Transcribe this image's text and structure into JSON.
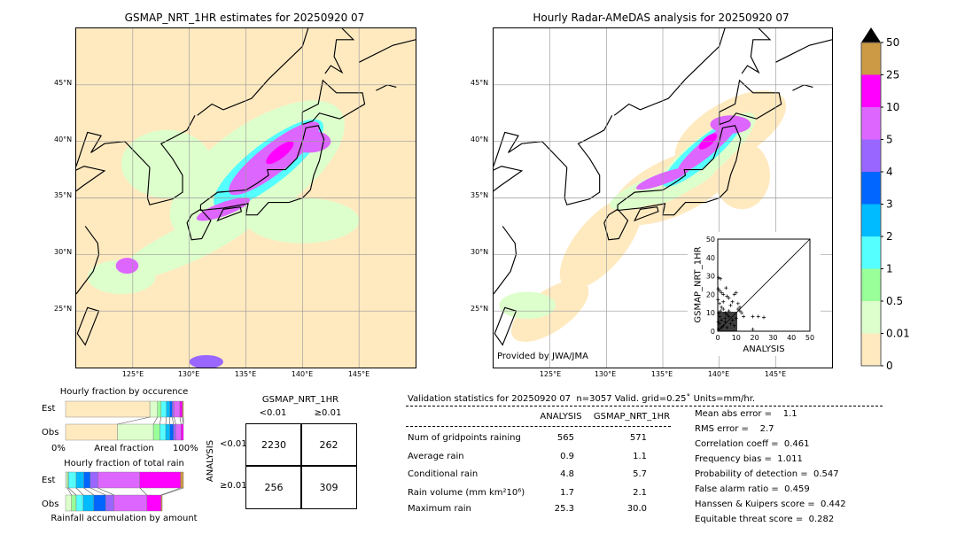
{
  "left_map": {
    "title": "GSMAP_NRT_1HR estimates for 20250920 07"
  },
  "right_map": {
    "title": "Hourly Radar-AMeDAS analysis for 20250920 07",
    "credit": "Provided by JWA/JMA"
  },
  "lon_ticks": [
    "125°E",
    "130°E",
    "135°E",
    "140°E",
    "145°E"
  ],
  "lat_ticks": [
    "45°N",
    "40°N",
    "35°N",
    "30°N",
    "25°N"
  ],
  "colorbar": {
    "labels": [
      "50",
      "25",
      "10",
      "5",
      "4",
      "3",
      "2",
      "1",
      "0.5",
      "0.01",
      "0"
    ],
    "colors": [
      "#cc9944",
      "#ff00ff",
      "#dd66ff",
      "#9966ff",
      "#0066ff",
      "#00bbff",
      "#55ffff",
      "#99ff99",
      "#ddffcc",
      "#ffeac0"
    ],
    "extend_color": "#000000"
  },
  "chart_data": [
    {
      "type": "bar",
      "title": "Hourly fraction by occurence",
      "xlabel": "Areal fraction",
      "x_tick_labels": [
        "0%",
        "100%"
      ],
      "categories": [
        "Est",
        "Obs"
      ],
      "series": [
        {
          "name": "Est",
          "cumulative": [
            0.715,
            0.78,
            0.81,
            0.855,
            0.885,
            0.905,
            0.92,
            0.97,
            0.99,
            1.0
          ]
        },
        {
          "name": "Obs",
          "cumulative": [
            0.44,
            0.745,
            0.8,
            0.85,
            0.885,
            0.915,
            0.935,
            0.98,
            1.0,
            1.0
          ]
        }
      ]
    },
    {
      "type": "bar",
      "title": "Hourly fraction of total rain",
      "xlabel": "Rainfall accumulation by amount",
      "categories": [
        "Est",
        "Obs"
      ],
      "series": [
        {
          "name": "Est",
          "cumulative": [
            0,
            0.015,
            0.025,
            0.09,
            0.155,
            0.21,
            0.275,
            0.63,
            0.975,
            1.0
          ]
        },
        {
          "name": "Obs",
          "cumulative": [
            0,
            0.05,
            0.09,
            0.15,
            0.24,
            0.34,
            0.41,
            0.69,
            0.81,
            0.82
          ]
        }
      ]
    },
    {
      "type": "table",
      "title": "GSMAP_NRT_1HR",
      "col_labels": [
        "<0.01",
        "≥0.01"
      ],
      "row_title": "ANALYSIS",
      "row_labels": [
        "<0.01",
        "≥0.01"
      ],
      "cells": [
        [
          "2230",
          "262"
        ],
        [
          "256",
          "309"
        ]
      ]
    },
    {
      "type": "scatter",
      "xlabel": "ANALYSIS",
      "ylabel": "GSMAP_NRT_1HR",
      "xlim": [
        0,
        50
      ],
      "ylim": [
        0,
        50
      ],
      "ticks": [
        "0",
        "10",
        "20",
        "30",
        "40",
        "50"
      ],
      "points": [
        [
          0.5,
          29
        ],
        [
          1.5,
          28.5
        ],
        [
          0.3,
          23
        ],
        [
          1,
          22
        ],
        [
          2,
          21
        ],
        [
          4.5,
          23.5
        ],
        [
          3,
          20
        ],
        [
          5,
          19
        ],
        [
          6,
          18
        ],
        [
          9,
          20
        ],
        [
          10,
          21
        ],
        [
          8,
          16
        ],
        [
          7,
          14
        ],
        [
          11,
          12
        ],
        [
          12,
          11
        ],
        [
          13,
          10
        ],
        [
          14,
          8
        ],
        [
          10,
          7
        ],
        [
          19,
          8
        ],
        [
          22,
          8
        ],
        [
          25,
          7.5
        ],
        [
          19,
          1
        ],
        [
          1,
          15
        ],
        [
          2,
          13
        ],
        [
          3,
          12
        ],
        [
          4,
          10
        ],
        [
          5,
          9
        ],
        [
          6,
          8
        ],
        [
          2,
          6
        ],
        [
          1,
          4
        ],
        [
          3,
          3
        ],
        [
          4,
          5
        ],
        [
          5,
          2
        ],
        [
          7,
          4
        ],
        [
          8,
          6
        ],
        [
          9,
          3
        ],
        [
          0.5,
          10
        ],
        [
          0.2,
          17
        ],
        [
          1,
          8
        ],
        [
          2,
          2
        ],
        [
          0.5,
          1
        ],
        [
          6,
          11
        ],
        [
          3,
          16
        ],
        [
          4,
          7
        ],
        [
          11,
          15
        ],
        [
          12,
          13
        ],
        [
          0.3,
          5
        ],
        [
          1.5,
          11
        ]
      ]
    }
  ],
  "stats": {
    "title": "Validation statistics for 20250920 07  n=3057 Valid. grid=0.25˚ Units=mm/hr.",
    "col_headers": [
      "ANALYSIS",
      "GSMAP_NRT_1HR"
    ],
    "rows": [
      {
        "label": "Num of gridpoints raining",
        "a": "565",
        "g": "571"
      },
      {
        "label": "Average rain",
        "a": "0.9",
        "g": "1.1"
      },
      {
        "label": "Conditional rain",
        "a": "4.8",
        "g": "5.7"
      },
      {
        "label": "Rain volume (mm km²10⁶)",
        "a": "1.7",
        "g": "2.1"
      },
      {
        "label": "Maximum rain",
        "a": "25.3",
        "g": "30.0"
      }
    ],
    "scores": [
      "Mean abs error =    1.1",
      "RMS error =    2.7",
      "Correlation coeff =  0.461",
      "Frequency bias =  1.011",
      "Probability of detection =  0.547",
      "False alarm ratio =  0.459",
      "Hanssen & Kuipers score =  0.442",
      "Equitable threat score =  0.282"
    ]
  }
}
